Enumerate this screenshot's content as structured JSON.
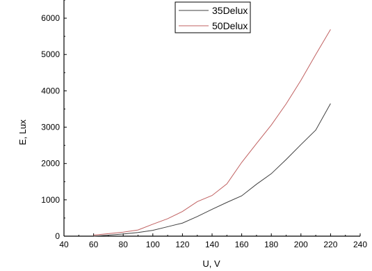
{
  "chart_data": {
    "type": "line",
    "xlabel": "U, V",
    "ylabel": "E, Lux",
    "xlim": [
      40,
      240
    ],
    "ylim": [
      0,
      6500
    ],
    "xticks": [
      40,
      60,
      80,
      100,
      120,
      140,
      160,
      180,
      200,
      220,
      240
    ],
    "yticks": [
      0,
      1000,
      2000,
      3000,
      4000,
      5000,
      6000
    ],
    "grid": false,
    "legend_position": "top",
    "series": [
      {
        "name": "35Delux",
        "color": "#404040",
        "x": [
          60,
          70,
          80,
          90,
          100,
          110,
          120,
          130,
          140,
          150,
          160,
          170,
          180,
          190,
          200,
          210,
          220
        ],
        "y": [
          0,
          30,
          60,
          100,
          160,
          260,
          360,
          540,
          740,
          930,
          1110,
          1430,
          1720,
          2110,
          2520,
          2920,
          3650
        ]
      },
      {
        "name": "50Delux",
        "color": "#c06060",
        "x": [
          60,
          70,
          80,
          90,
          100,
          110,
          120,
          130,
          140,
          150,
          160,
          170,
          180,
          190,
          200,
          210,
          220
        ],
        "y": [
          30,
          70,
          110,
          170,
          330,
          480,
          680,
          950,
          1120,
          1440,
          2030,
          2550,
          3060,
          3640,
          4290,
          5000,
          5690
        ]
      }
    ]
  }
}
